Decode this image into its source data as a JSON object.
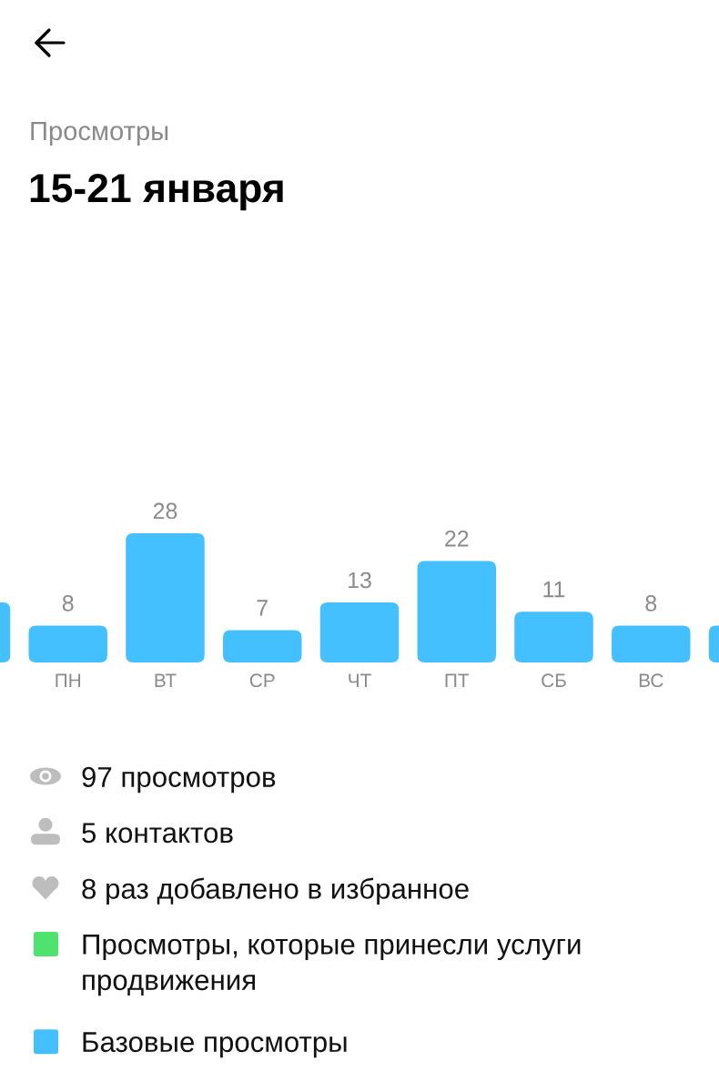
{
  "chart_data": {
    "type": "bar",
    "title": "Просмотры",
    "subtitle": "15-21 января",
    "categories": [
      null,
      "ПН",
      "ВТ",
      "СР",
      "ЧТ",
      "ПТ",
      "СБ",
      "ВС",
      null
    ],
    "series": [
      {
        "name": "Просмотры, которые принесли услуги продвижения",
        "color": "#4ee36f",
        "values": [
          null,
          null,
          null,
          null,
          null,
          null,
          null,
          null,
          null
        ]
      },
      {
        "name": "Базовые просмотры",
        "color": "#45c0ff",
        "values": [
          13,
          8,
          28,
          7,
          13,
          22,
          11,
          8,
          8
        ],
        "value_labels": [
          null,
          "8",
          "28",
          "7",
          "13",
          "22",
          "11",
          "8",
          null
        ]
      }
    ],
    "stacked": true,
    "legend": "bottom",
    "annotations": [
      "97 просмотров",
      "5 контактов",
      "8 раз добавлено в избранное"
    ]
  }
}
